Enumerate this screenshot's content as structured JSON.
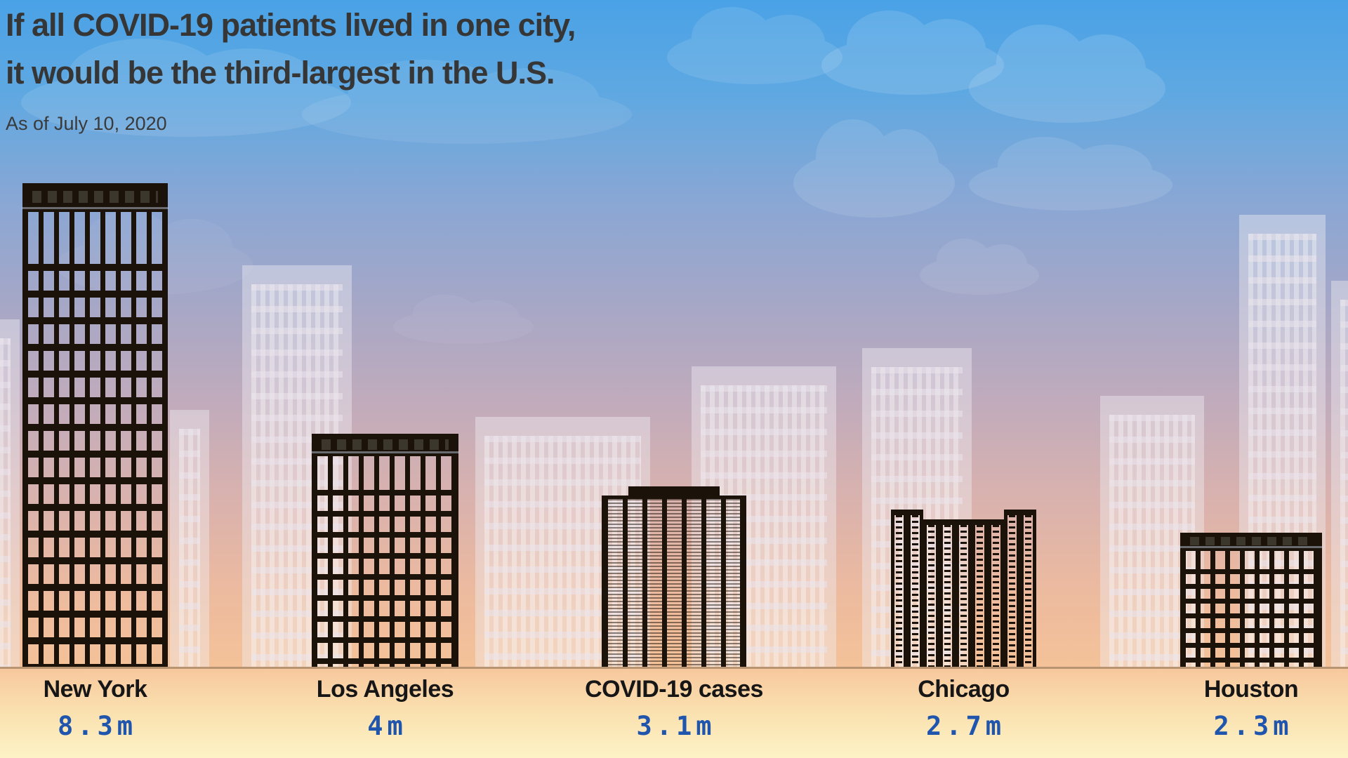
{
  "title": {
    "line1": "If all COVID-19 patients lived in one city,",
    "line2": "it would be the third-largest in the U.S."
  },
  "subtitle": "As of July 10, 2020",
  "chart_data": {
    "type": "bar",
    "title": "If all COVID-19 patients lived in one city, it would be the third-largest in the U.S.",
    "subtitle": "As of July 10, 2020",
    "categories": [
      "New York",
      "Los Angeles",
      "COVID-19 cases",
      "Chicago",
      "Houston"
    ],
    "values": [
      8.3,
      4,
      3.1,
      2.7,
      2.3
    ],
    "value_labels": [
      "8.3m",
      "4m",
      "3.1m",
      "2.7m",
      "2.3m"
    ],
    "unit": "millions of people",
    "highlight_category": "COVID-19 cases",
    "bar_representation": "skyscraper silhouettes; building height proportional to value",
    "legend": "none",
    "grid": "off"
  },
  "colors": {
    "sky_top": "#4aa2e6",
    "sky_horizon": "#f4c298",
    "ground_top": "#f7c89d",
    "ground_bottom": "#fdf3c6",
    "building_frame": "#1b1209",
    "crown_window": "#3b372c",
    "title_text": "#363636",
    "city_label_text": "#161616",
    "value_text": "#1f55ad"
  }
}
